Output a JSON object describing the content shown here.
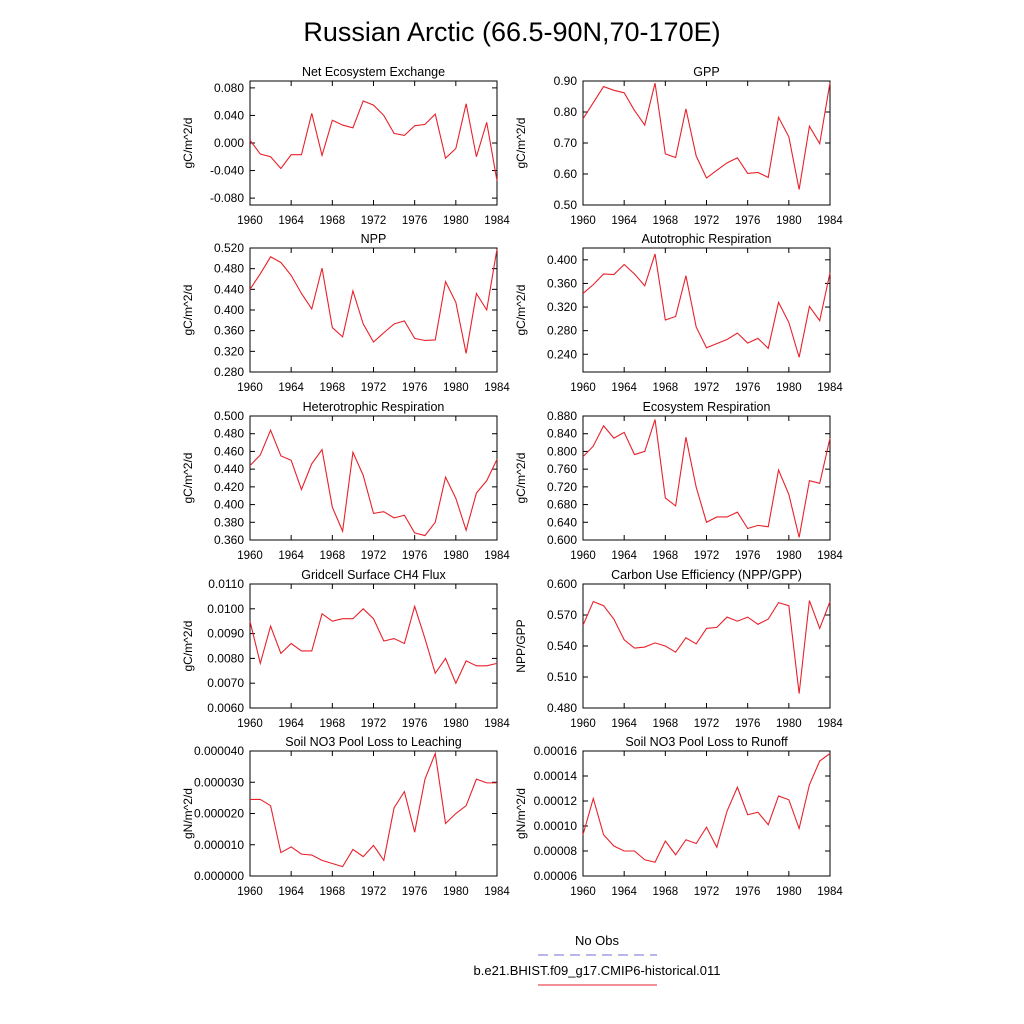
{
  "page": {
    "title": "Russian Arctic (66.5-90N,70-170E)"
  },
  "legend": {
    "entries": [
      {
        "label": "No Obs",
        "color": "#6f6fd6",
        "dash": true
      },
      {
        "label": "b.e21.BHIST.f09_g17.CMIP6-historical.011",
        "color": "#e8212b",
        "dash": false
      }
    ]
  },
  "colors": {
    "series": "#e8212b"
  },
  "chart_data": [
    {
      "type": "line",
      "title": "Net Ecosystem Exchange",
      "ylabel": "gC/m^2/d",
      "xlim": [
        1960,
        1984
      ],
      "ylim": [
        -0.09,
        0.09
      ],
      "xticks": [
        "1960",
        "1964",
        "1968",
        "1972",
        "1976",
        "1980",
        "1984"
      ],
      "yticks": [
        "-0.080",
        "-0.040",
        "0.000",
        "0.040",
        "0.080"
      ],
      "x": [
        1960,
        1961,
        1962,
        1963,
        1964,
        1965,
        1966,
        1967,
        1968,
        1969,
        1970,
        1971,
        1972,
        1973,
        1974,
        1975,
        1976,
        1977,
        1978,
        1979,
        1980,
        1981,
        1982,
        1983,
        1984
      ],
      "series": [
        {
          "values": [
            0.004,
            -0.016,
            -0.02,
            -0.037,
            -0.017,
            -0.017,
            0.043,
            -0.018,
            0.033,
            0.026,
            0.022,
            0.061,
            0.055,
            0.04,
            0.014,
            0.011,
            0.025,
            0.027,
            0.042,
            -0.022,
            -0.008,
            0.057,
            -0.02,
            0.03,
            -0.055
          ]
        }
      ]
    },
    {
      "type": "line",
      "title": "GPP",
      "ylabel": "gC/m^2/d",
      "xlim": [
        1960,
        1984
      ],
      "ylim": [
        0.5,
        0.9
      ],
      "xticks": [
        "1960",
        "1964",
        "1968",
        "1972",
        "1976",
        "1980",
        "1984"
      ],
      "yticks": [
        "0.50",
        "0.60",
        "0.70",
        "0.80",
        "0.90"
      ],
      "x": [
        1960,
        1961,
        1962,
        1963,
        1964,
        1965,
        1966,
        1967,
        1968,
        1969,
        1970,
        1971,
        1972,
        1973,
        1974,
        1975,
        1976,
        1977,
        1978,
        1979,
        1980,
        1981,
        1982,
        1983,
        1984
      ],
      "series": [
        {
          "values": [
            0.778,
            0.83,
            0.882,
            0.87,
            0.862,
            0.805,
            0.758,
            0.893,
            0.665,
            0.653,
            0.81,
            0.658,
            0.587,
            0.612,
            0.636,
            0.652,
            0.602,
            0.605,
            0.589,
            0.783,
            0.72,
            0.55,
            0.754,
            0.698,
            0.895
          ]
        }
      ]
    },
    {
      "type": "line",
      "title": "NPP",
      "ylabel": "gC/m^2/d",
      "xlim": [
        1960,
        1984
      ],
      "ylim": [
        0.28,
        0.52
      ],
      "xticks": [
        "1960",
        "1964",
        "1968",
        "1972",
        "1976",
        "1980",
        "1984"
      ],
      "yticks": [
        "0.280",
        "0.320",
        "0.360",
        "0.400",
        "0.440",
        "0.480",
        "0.520"
      ],
      "x": [
        1960,
        1961,
        1962,
        1963,
        1964,
        1965,
        1966,
        1967,
        1968,
        1969,
        1970,
        1971,
        1972,
        1973,
        1974,
        1975,
        1976,
        1977,
        1978,
        1979,
        1980,
        1981,
        1982,
        1983,
        1984
      ],
      "series": [
        {
          "values": [
            0.44,
            0.47,
            0.503,
            0.492,
            0.467,
            0.432,
            0.402,
            0.481,
            0.366,
            0.348,
            0.437,
            0.373,
            0.338,
            0.356,
            0.373,
            0.379,
            0.345,
            0.341,
            0.342,
            0.455,
            0.415,
            0.316,
            0.432,
            0.4,
            0.518
          ]
        }
      ]
    },
    {
      "type": "line",
      "title": "Autotrophic Respiration",
      "ylabel": "gC/m^2/d",
      "xlim": [
        1960,
        1984
      ],
      "ylim": [
        0.21,
        0.42
      ],
      "xticks": [
        "1960",
        "1964",
        "1968",
        "1972",
        "1976",
        "1980",
        "1984"
      ],
      "yticks": [
        "0.240",
        "0.280",
        "0.320",
        "0.360",
        "0.400"
      ],
      "x": [
        1960,
        1961,
        1962,
        1963,
        1964,
        1965,
        1966,
        1967,
        1968,
        1969,
        1970,
        1971,
        1972,
        1973,
        1974,
        1975,
        1976,
        1977,
        1978,
        1979,
        1980,
        1981,
        1982,
        1983,
        1984
      ],
      "series": [
        {
          "values": [
            0.343,
            0.358,
            0.376,
            0.375,
            0.392,
            0.376,
            0.356,
            0.41,
            0.298,
            0.304,
            0.373,
            0.286,
            0.251,
            0.258,
            0.265,
            0.276,
            0.259,
            0.267,
            0.25,
            0.328,
            0.294,
            0.235,
            0.321,
            0.297,
            0.378
          ]
        }
      ]
    },
    {
      "type": "line",
      "title": "Heterotrophic Respiration",
      "ylabel": "gC/m^2/d",
      "xlim": [
        1960,
        1984
      ],
      "ylim": [
        0.36,
        0.5
      ],
      "xticks": [
        "1960",
        "1964",
        "1968",
        "1972",
        "1976",
        "1980",
        "1984"
      ],
      "yticks": [
        "0.360",
        "0.380",
        "0.400",
        "0.420",
        "0.440",
        "0.460",
        "0.480",
        "0.500"
      ],
      "x": [
        1960,
        1961,
        1962,
        1963,
        1964,
        1965,
        1966,
        1967,
        1968,
        1969,
        1970,
        1971,
        1972,
        1973,
        1974,
        1975,
        1976,
        1977,
        1978,
        1979,
        1980,
        1981,
        1982,
        1983,
        1984
      ],
      "series": [
        {
          "values": [
            0.444,
            0.456,
            0.484,
            0.455,
            0.45,
            0.417,
            0.446,
            0.462,
            0.397,
            0.37,
            0.459,
            0.433,
            0.39,
            0.392,
            0.385,
            0.388,
            0.368,
            0.365,
            0.38,
            0.431,
            0.407,
            0.371,
            0.413,
            0.427,
            0.451
          ]
        }
      ]
    },
    {
      "type": "line",
      "title": "Ecosystem Respiration",
      "ylabel": "gC/m^2/d",
      "xlim": [
        1960,
        1984
      ],
      "ylim": [
        0.6,
        0.88
      ],
      "xticks": [
        "1960",
        "1964",
        "1968",
        "1972",
        "1976",
        "1980",
        "1984"
      ],
      "yticks": [
        "0.600",
        "0.640",
        "0.680",
        "0.720",
        "0.760",
        "0.800",
        "0.840",
        "0.880"
      ],
      "x": [
        1960,
        1961,
        1962,
        1963,
        1964,
        1965,
        1966,
        1967,
        1968,
        1969,
        1970,
        1971,
        1972,
        1973,
        1974,
        1975,
        1976,
        1977,
        1978,
        1979,
        1980,
        1981,
        1982,
        1983,
        1984
      ],
      "series": [
        {
          "values": [
            0.788,
            0.812,
            0.858,
            0.83,
            0.843,
            0.793,
            0.8,
            0.872,
            0.695,
            0.677,
            0.832,
            0.719,
            0.64,
            0.652,
            0.652,
            0.663,
            0.626,
            0.633,
            0.63,
            0.758,
            0.703,
            0.606,
            0.734,
            0.728,
            0.83
          ]
        }
      ]
    },
    {
      "type": "line",
      "title": "Gridcell Surface CH4 Flux",
      "ylabel": "gC/m^2/d",
      "xlim": [
        1960,
        1984
      ],
      "ylim": [
        0.006,
        0.011
      ],
      "xticks": [
        "1960",
        "1964",
        "1968",
        "1972",
        "1976",
        "1980",
        "1984"
      ],
      "yticks": [
        "0.0060",
        "0.0070",
        "0.0080",
        "0.0090",
        "0.0100",
        "0.0110"
      ],
      "x": [
        1960,
        1961,
        1962,
        1963,
        1964,
        1965,
        1966,
        1967,
        1968,
        1969,
        1970,
        1971,
        1972,
        1973,
        1974,
        1975,
        1976,
        1977,
        1978,
        1979,
        1980,
        1981,
        1982,
        1983,
        1984
      ],
      "series": [
        {
          "values": [
            0.0095,
            0.0078,
            0.0093,
            0.0082,
            0.0086,
            0.0083,
            0.0083,
            0.0098,
            0.0095,
            0.0096,
            0.0096,
            0.01,
            0.0096,
            0.0087,
            0.0088,
            0.0086,
            0.0101,
            0.0088,
            0.0074,
            0.008,
            0.007,
            0.0079,
            0.0077,
            0.0077,
            0.0078
          ]
        }
      ]
    },
    {
      "type": "line",
      "title": "Carbon Use Efficiency (NPP/GPP)",
      "ylabel": "NPP/GPP",
      "xlim": [
        1960,
        1984
      ],
      "ylim": [
        0.48,
        0.6
      ],
      "xticks": [
        "1960",
        "1964",
        "1968",
        "1972",
        "1976",
        "1980",
        "1984"
      ],
      "yticks": [
        "0.480",
        "0.510",
        "0.540",
        "0.570",
        "0.600"
      ],
      "x": [
        1960,
        1961,
        1962,
        1963,
        1964,
        1965,
        1966,
        1967,
        1968,
        1969,
        1970,
        1971,
        1972,
        1973,
        1974,
        1975,
        1976,
        1977,
        1978,
        1979,
        1980,
        1981,
        1982,
        1983,
        1984
      ],
      "series": [
        {
          "values": [
            0.56,
            0.583,
            0.579,
            0.566,
            0.546,
            0.538,
            0.539,
            0.543,
            0.54,
            0.534,
            0.548,
            0.542,
            0.557,
            0.558,
            0.568,
            0.564,
            0.568,
            0.561,
            0.566,
            0.582,
            0.579,
            0.494,
            0.584,
            0.557,
            0.583
          ]
        }
      ]
    },
    {
      "type": "line",
      "title": "Soil NO3 Pool Loss to Leaching",
      "ylabel": "gN/m^2/d",
      "xlim": [
        1960,
        1984
      ],
      "ylim": [
        0.0,
        4e-05
      ],
      "xticks": [
        "1960",
        "1964",
        "1968",
        "1972",
        "1976",
        "1980",
        "1984"
      ],
      "yticks": [
        "0.000000",
        "0.000010",
        "0.000020",
        "0.000030",
        "0.000040"
      ],
      "x": [
        1960,
        1961,
        1962,
        1963,
        1964,
        1965,
        1966,
        1967,
        1968,
        1969,
        1970,
        1971,
        1972,
        1973,
        1974,
        1975,
        1976,
        1977,
        1978,
        1979,
        1980,
        1981,
        1982,
        1983,
        1984
      ],
      "series": [
        {
          "values": [
            2.45e-05,
            2.45e-05,
            2.25e-05,
            7.5e-06,
            9.3e-06,
            7e-06,
            6.7e-06,
            5e-06,
            4e-06,
            3e-06,
            8.5e-06,
            6.2e-06,
            9.8e-06,
            5e-06,
            2.18e-05,
            2.7e-05,
            1.4e-05,
            3.1e-05,
            3.92e-05,
            1.68e-05,
            2e-05,
            2.25e-05,
            3.1e-05,
            2.98e-05,
            2.98e-05
          ]
        }
      ]
    },
    {
      "type": "line",
      "title": "Soil NO3 Pool Loss to Runoff",
      "ylabel": "gN/m^2/d",
      "xlim": [
        1960,
        1984
      ],
      "ylim": [
        6e-05,
        0.00016
      ],
      "xticks": [
        "1960",
        "1964",
        "1968",
        "1972",
        "1976",
        "1980",
        "1984"
      ],
      "yticks": [
        "0.00006",
        "0.00008",
        "0.00010",
        "0.00012",
        "0.00014",
        "0.00016"
      ],
      "x": [
        1960,
        1961,
        1962,
        1963,
        1964,
        1965,
        1966,
        1967,
        1968,
        1969,
        1970,
        1971,
        1972,
        1973,
        1974,
        1975,
        1976,
        1977,
        1978,
        1979,
        1980,
        1981,
        1982,
        1983,
        1984
      ],
      "series": [
        {
          "values": [
            9.3e-05,
            0.000122,
            9.3e-05,
            8.4e-05,
            8e-05,
            8e-05,
            7.3e-05,
            7.1e-05,
            8.8e-05,
            7.7e-05,
            8.9e-05,
            8.6e-05,
            9.9e-05,
            8.3e-05,
            0.000112,
            0.000131,
            0.000109,
            0.000111,
            0.000101,
            0.000124,
            0.000121,
            9.8e-05,
            0.000133,
            0.000152,
            0.000158
          ]
        }
      ]
    }
  ]
}
